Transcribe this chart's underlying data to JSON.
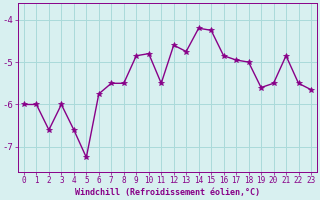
{
  "x": [
    0,
    1,
    2,
    3,
    4,
    5,
    6,
    7,
    8,
    9,
    10,
    11,
    12,
    13,
    14,
    15,
    16,
    17,
    18,
    19,
    20,
    21,
    22,
    23
  ],
  "y": [
    -6.0,
    -6.0,
    -6.6,
    -6.0,
    -6.6,
    -7.25,
    -5.75,
    -5.5,
    -5.5,
    -4.85,
    -4.8,
    -5.5,
    -4.6,
    -4.75,
    -4.2,
    -4.25,
    -4.85,
    -4.95,
    -5.0,
    -5.6,
    -5.5,
    -4.85,
    -5.5,
    -5.65
  ],
  "line_color": "#880088",
  "marker": "*",
  "markersize": 4,
  "linewidth": 1.0,
  "bg_color": "#d8f0f0",
  "grid_color": "#aadada",
  "xlabel": "Windchill (Refroidissement éolien,°C)",
  "xlabel_color": "#880088",
  "tick_color": "#880088",
  "label_fontsize": 5.5,
  "ytick_fontsize": 6.5,
  "ylim": [
    -7.6,
    -3.6
  ],
  "yticks": [
    -7,
    -6,
    -5,
    -4
  ],
  "xlim": [
    -0.5,
    23.5
  ],
  "xticks": [
    0,
    1,
    2,
    3,
    4,
    5,
    6,
    7,
    8,
    9,
    10,
    11,
    12,
    13,
    14,
    15,
    16,
    17,
    18,
    19,
    20,
    21,
    22,
    23
  ]
}
